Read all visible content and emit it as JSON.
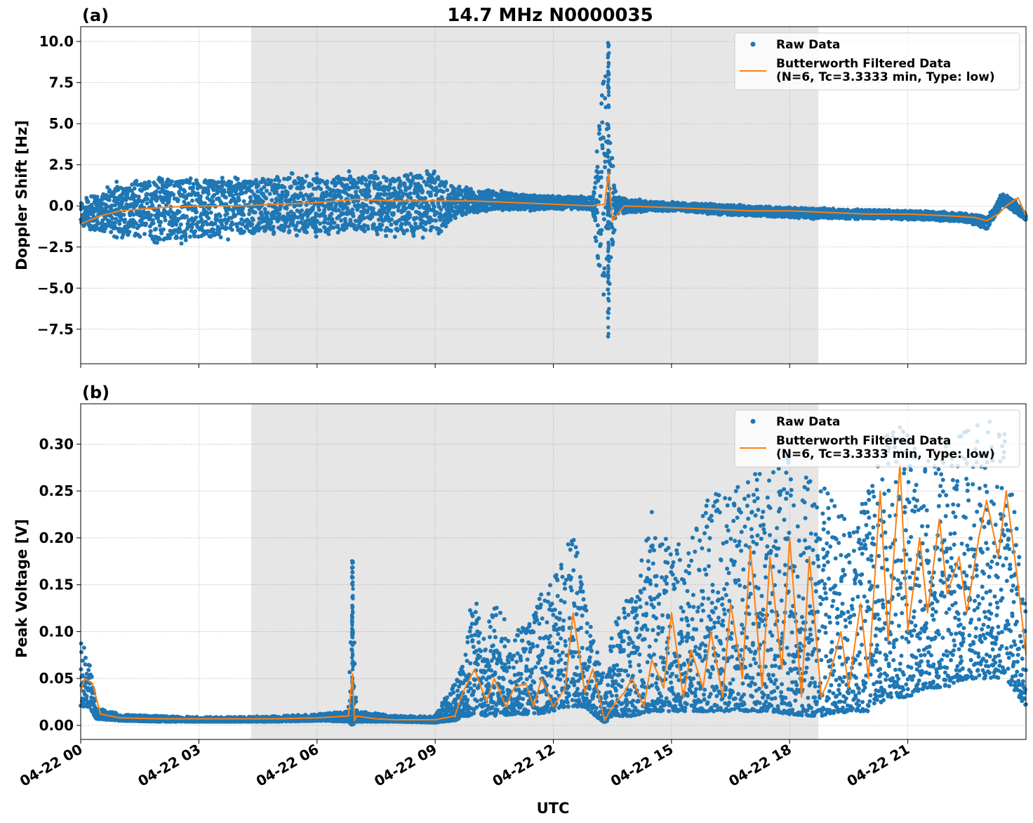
{
  "figure_title": "14.7 MHz N0000035",
  "colors": {
    "raw": "#1f77b4",
    "filtered": "#ff7f0e",
    "shade": "#e6e6e6",
    "grid": "#b0b0b0"
  },
  "chart_data": [
    {
      "panel_label": "(a)",
      "type": "scatter",
      "title": "14.7 MHz N0000035",
      "xlabel": "",
      "ylabel": "Doppler Shift [Hz]",
      "x_unit": "hours UTC on 04-22",
      "xlim": [
        0,
        24
      ],
      "ylim": [
        -9.6,
        10.9
      ],
      "y_ticks": [
        10.0,
        7.5,
        5.0,
        2.5,
        0.0,
        -2.5,
        -5.0,
        -7.5
      ],
      "y_tick_labels": [
        "10.0",
        "7.5",
        "5.0",
        "2.5",
        "0.0",
        "−2.5",
        "−5.0",
        "−7.5"
      ],
      "grid": true,
      "legend_position": "top-right",
      "shaded_interval": [
        4.33,
        18.73
      ],
      "series": [
        {
          "name": "Raw Data",
          "style": "points",
          "x": [
            0.0,
            1.0,
            2.0,
            3.0,
            4.0,
            5.0,
            6.0,
            7.0,
            8.0,
            9.0,
            9.5,
            10.5,
            11.5,
            12.5,
            13.0,
            13.3,
            13.6,
            14.5,
            15.5,
            16.5,
            17.5,
            18.5,
            19.5,
            20.5,
            21.5,
            22.5,
            23.0,
            23.4,
            23.7,
            24.0
          ],
          "y_upper": [
            0.5,
            1.6,
            2.0,
            1.9,
            1.8,
            2.0,
            2.0,
            2.2,
            2.2,
            2.2,
            1.3,
            1.0,
            0.7,
            0.6,
            0.6,
            10.0,
            0.6,
            0.3,
            0.2,
            0.1,
            0.0,
            -0.1,
            -0.2,
            -0.2,
            -0.3,
            -0.4,
            -0.6,
            0.8,
            0.4,
            -0.5
          ],
          "y_lower": [
            -1.5,
            -2.0,
            -2.4,
            -2.2,
            -2.0,
            -1.9,
            -1.9,
            -1.7,
            -2.0,
            -2.0,
            -0.8,
            -0.3,
            -0.3,
            -0.2,
            -0.3,
            -8.6,
            -0.6,
            -0.3,
            -0.4,
            -0.6,
            -0.7,
            -0.8,
            -0.8,
            -0.8,
            -0.9,
            -1.0,
            -1.5,
            0.0,
            -0.4,
            -0.9
          ],
          "spike": {
            "x": 13.4,
            "y_max": 10.0,
            "y_min": -8.6
          }
        },
        {
          "name": "Butterworth Filtered Data\n(N=6, Tc=3.3333 min, Type: low)",
          "style": "line",
          "x": [
            0.0,
            0.5,
            1.0,
            2.0,
            3.0,
            4.0,
            5.0,
            6.0,
            7.0,
            8.0,
            9.0,
            10.0,
            11.0,
            12.0,
            13.0,
            13.3,
            13.4,
            13.5,
            13.8,
            15.0,
            16.0,
            17.0,
            18.0,
            19.0,
            20.0,
            21.0,
            22.0,
            22.7,
            23.0,
            23.3,
            23.5,
            23.8,
            24.0
          ],
          "y": [
            -1.1,
            -0.6,
            -0.3,
            -0.1,
            0.0,
            0.0,
            0.1,
            0.2,
            0.4,
            0.3,
            0.3,
            0.3,
            0.2,
            0.1,
            0.0,
            0.1,
            2.0,
            -0.9,
            0.0,
            -0.1,
            -0.2,
            -0.3,
            -0.3,
            -0.4,
            -0.5,
            -0.5,
            -0.6,
            -0.7,
            -0.9,
            -0.5,
            0.0,
            0.5,
            -0.6
          ]
        }
      ]
    },
    {
      "panel_label": "(b)",
      "type": "scatter",
      "title": "",
      "xlabel": "UTC",
      "ylabel": "Peak Voltage [V]",
      "x_unit": "hours UTC on 04-22",
      "xlim": [
        0,
        24
      ],
      "ylim": [
        -0.015,
        0.343
      ],
      "y_ticks": [
        0.3,
        0.25,
        0.2,
        0.15,
        0.1,
        0.05,
        0.0
      ],
      "y_tick_labels": [
        "0.30",
        "0.25",
        "0.20",
        "0.15",
        "0.10",
        "0.05",
        "0.00"
      ],
      "x_ticks": [
        0,
        3,
        6,
        9,
        12,
        15,
        18,
        21
      ],
      "x_tick_labels": [
        "04-22 00",
        "04-22 03",
        "04-22 06",
        "04-22 09",
        "04-22 12",
        "04-22 15",
        "04-22 18",
        "04-22 21"
      ],
      "grid": true,
      "legend_position": "top-right",
      "shaded_interval": [
        4.33,
        18.73
      ],
      "series": [
        {
          "name": "Raw Data",
          "style": "points",
          "x": [
            0.0,
            0.2,
            0.4,
            1.0,
            2.0,
            3.0,
            4.0,
            5.0,
            6.0,
            6.8,
            6.9,
            7.0,
            8.0,
            9.0,
            9.5,
            9.7,
            10.0,
            10.2,
            10.5,
            11.0,
            11.5,
            12.0,
            12.3,
            12.5,
            12.8,
            13.3,
            13.5,
            14.0,
            14.5,
            15.0,
            15.5,
            16.0,
            16.5,
            17.0,
            17.5,
            18.0,
            18.5,
            19.0,
            19.5,
            20.0,
            20.5,
            21.0,
            21.5,
            22.0,
            22.5,
            23.0,
            23.5,
            24.0
          ],
          "y_upper": [
            0.095,
            0.075,
            0.02,
            0.012,
            0.01,
            0.009,
            0.009,
            0.01,
            0.012,
            0.015,
            0.176,
            0.016,
            0.01,
            0.01,
            0.05,
            0.075,
            0.165,
            0.09,
            0.135,
            0.095,
            0.13,
            0.16,
            0.21,
            0.217,
            0.135,
            0.05,
            0.11,
            0.15,
            0.23,
            0.19,
            0.2,
            0.25,
            0.245,
            0.29,
            0.27,
            0.29,
            0.265,
            0.25,
            0.215,
            0.25,
            0.32,
            0.325,
            0.3,
            0.3,
            0.32,
            0.325,
            0.32,
            0.12
          ],
          "y_lower": [
            0.02,
            0.02,
            0.007,
            0.005,
            0.004,
            0.004,
            0.004,
            0.004,
            0.005,
            0.004,
            0.0,
            0.004,
            0.004,
            0.003,
            0.005,
            0.01,
            0.01,
            0.01,
            0.01,
            0.012,
            0.012,
            0.015,
            0.02,
            0.02,
            0.02,
            0.002,
            0.01,
            0.01,
            0.015,
            0.015,
            0.015,
            0.015,
            0.015,
            0.015,
            0.015,
            0.012,
            0.01,
            0.01,
            0.015,
            0.015,
            0.03,
            0.03,
            0.04,
            0.04,
            0.05,
            0.05,
            0.05,
            0.02
          ],
          "spike": {
            "x": 6.9,
            "y_max": 0.176,
            "y_min": 0.0
          }
        },
        {
          "name": "Butterworth Filtered Data\n(N=6, Tc=3.3333 min, Type: low)",
          "style": "line",
          "x": [
            0.0,
            0.1,
            0.3,
            0.5,
            1.0,
            2.0,
            3.0,
            4.0,
            5.0,
            6.0,
            6.8,
            6.9,
            6.95,
            7.0,
            7.5,
            8.0,
            9.0,
            9.5,
            9.7,
            10.0,
            10.3,
            10.5,
            10.8,
            11.0,
            11.3,
            11.5,
            11.7,
            12.0,
            12.3,
            12.5,
            12.8,
            13.0,
            13.3,
            13.5,
            13.8,
            14.0,
            14.3,
            14.5,
            14.8,
            15.0,
            15.3,
            15.5,
            15.8,
            16.0,
            16.3,
            16.5,
            16.8,
            17.0,
            17.3,
            17.5,
            17.8,
            18.0,
            18.3,
            18.5,
            18.8,
            19.0,
            19.3,
            19.5,
            19.8,
            20.0,
            20.3,
            20.5,
            20.8,
            21.0,
            21.3,
            21.5,
            21.8,
            22.0,
            22.3,
            22.5,
            22.8,
            23.0,
            23.3,
            23.5,
            23.8,
            24.0
          ],
          "y": [
            0.035,
            0.05,
            0.045,
            0.012,
            0.008,
            0.007,
            0.007,
            0.007,
            0.007,
            0.008,
            0.01,
            0.055,
            0.005,
            0.01,
            0.007,
            0.006,
            0.006,
            0.01,
            0.035,
            0.06,
            0.025,
            0.05,
            0.02,
            0.04,
            0.045,
            0.02,
            0.05,
            0.02,
            0.04,
            0.12,
            0.035,
            0.06,
            0.005,
            0.02,
            0.035,
            0.05,
            0.02,
            0.07,
            0.04,
            0.12,
            0.03,
            0.08,
            0.04,
            0.1,
            0.03,
            0.13,
            0.05,
            0.19,
            0.04,
            0.18,
            0.06,
            0.2,
            0.03,
            0.18,
            0.03,
            0.05,
            0.1,
            0.04,
            0.13,
            0.05,
            0.25,
            0.09,
            0.28,
            0.1,
            0.2,
            0.12,
            0.22,
            0.14,
            0.18,
            0.12,
            0.2,
            0.24,
            0.18,
            0.25,
            0.15,
            0.075
          ]
        }
      ]
    }
  ]
}
